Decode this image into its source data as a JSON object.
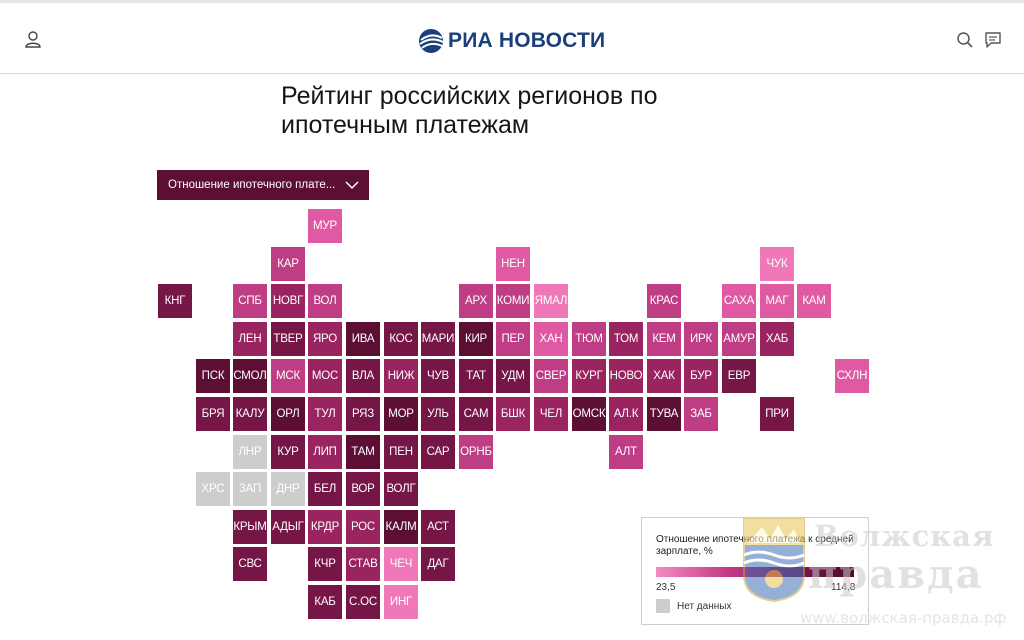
{
  "header": {
    "brand": "РИА НОВОСТИ",
    "icons": {
      "user": "user-icon",
      "search": "search-icon",
      "comments": "comment-icon"
    }
  },
  "title": "Рейтинг российских регионов по ипотечным платежам",
  "dropdown": {
    "selected": "Отношение ипотечного плате..."
  },
  "palette": {
    "c1": "#f078b8",
    "c2": "#df5aa3",
    "c3": "#bf3d84",
    "c4": "#9a245f",
    "c5": "#761647",
    "c6": "#5c0f33",
    "nodata": "#cdcdcd"
  },
  "regions": [
    {
      "code": "МУР",
      "c": "c2"
    },
    {
      "code": "КАР",
      "c": "c3"
    },
    {
      "code": "НЕН",
      "c": "c2"
    },
    {
      "code": "ЧУК",
      "c": "c1"
    },
    {
      "code": "КНГ",
      "c": "c5"
    },
    {
      "code": "СПБ",
      "c": "c3"
    },
    {
      "code": "НОВГ",
      "c": "c4"
    },
    {
      "code": "ВОЛ",
      "c": "c3"
    },
    {
      "code": "АРХ",
      "c": "c3"
    },
    {
      "code": "КОМИ",
      "c": "c3"
    },
    {
      "code": "ЯМАЛ",
      "c": "c1"
    },
    {
      "code": "КРАС",
      "c": "c3"
    },
    {
      "code": "САХА",
      "c": "c2"
    },
    {
      "code": "МАГ",
      "c": "c2"
    },
    {
      "code": "КАМ",
      "c": "c2"
    },
    {
      "code": "ЛЕН",
      "c": "c4"
    },
    {
      "code": "ТВЕР",
      "c": "c5"
    },
    {
      "code": "ЯРО",
      "c": "c4"
    },
    {
      "code": "ИВА",
      "c": "c6"
    },
    {
      "code": "КОС",
      "c": "c5"
    },
    {
      "code": "МАРИ",
      "c": "c5"
    },
    {
      "code": "КИР",
      "c": "c6"
    },
    {
      "code": "ПЕР",
      "c": "c3"
    },
    {
      "code": "ХАН",
      "c": "c2"
    },
    {
      "code": "ТЮМ",
      "c": "c3"
    },
    {
      "code": "ТОМ",
      "c": "c4"
    },
    {
      "code": "КЕМ",
      "c": "c3"
    },
    {
      "code": "ИРК",
      "c": "c3"
    },
    {
      "code": "АМУР",
      "c": "c3"
    },
    {
      "code": "ХАБ",
      "c": "c4"
    },
    {
      "code": "ПСК",
      "c": "c6"
    },
    {
      "code": "СМОЛ",
      "c": "c6"
    },
    {
      "code": "МСК",
      "c": "c3"
    },
    {
      "code": "МОС",
      "c": "c4"
    },
    {
      "code": "ВЛА",
      "c": "c5"
    },
    {
      "code": "НИЖ",
      "c": "c4"
    },
    {
      "code": "ЧУВ",
      "c": "c5"
    },
    {
      "code": "ТАТ",
      "c": "c5"
    },
    {
      "code": "УДМ",
      "c": "c5"
    },
    {
      "code": "СВЕР",
      "c": "c3"
    },
    {
      "code": "КУРГ",
      "c": "c4"
    },
    {
      "code": "НОВО",
      "c": "c4"
    },
    {
      "code": "ХАК",
      "c": "c4"
    },
    {
      "code": "БУР",
      "c": "c4"
    },
    {
      "code": "ЕВР",
      "c": "c5"
    },
    {
      "code": "СХЛН",
      "c": "c2"
    },
    {
      "code": "БРЯ",
      "c": "c5"
    },
    {
      "code": "КАЛУ",
      "c": "c5"
    },
    {
      "code": "ОРЛ",
      "c": "c6"
    },
    {
      "code": "ТУЛ",
      "c": "c4"
    },
    {
      "code": "РЯЗ",
      "c": "c5"
    },
    {
      "code": "МОР",
      "c": "c6"
    },
    {
      "code": "УЛЬ",
      "c": "c5"
    },
    {
      "code": "САМ",
      "c": "c5"
    },
    {
      "code": "БШК",
      "c": "c4"
    },
    {
      "code": "ЧЕЛ",
      "c": "c4"
    },
    {
      "code": "ОМСК",
      "c": "c6"
    },
    {
      "code": "АЛ.К",
      "c": "c4"
    },
    {
      "code": "ТУВА",
      "c": "c6"
    },
    {
      "code": "ЗАБ",
      "c": "c3"
    },
    {
      "code": "ПРИ",
      "c": "c5"
    },
    {
      "code": "ЛНР",
      "c": "nodata"
    },
    {
      "code": "КУР",
      "c": "c5"
    },
    {
      "code": "ЛИП",
      "c": "c4"
    },
    {
      "code": "ТАМ",
      "c": "c6"
    },
    {
      "code": "ПЕН",
      "c": "c5"
    },
    {
      "code": "САР",
      "c": "c5"
    },
    {
      "code": "ОРНБ",
      "c": "c3"
    },
    {
      "code": "АЛТ",
      "c": "c3"
    },
    {
      "code": "ХРС",
      "c": "nodata"
    },
    {
      "code": "ЗАП",
      "c": "nodata"
    },
    {
      "code": "ДНР",
      "c": "nodata"
    },
    {
      "code": "БЕЛ",
      "c": "c5"
    },
    {
      "code": "ВОР",
      "c": "c5"
    },
    {
      "code": "ВОЛГ",
      "c": "c5"
    },
    {
      "code": "КРЫМ",
      "c": "c5"
    },
    {
      "code": "АДЫГ",
      "c": "c5"
    },
    {
      "code": "КРДР",
      "c": "c4"
    },
    {
      "code": "РОС",
      "c": "c4"
    },
    {
      "code": "КАЛМ",
      "c": "c6"
    },
    {
      "code": "АСТ",
      "c": "c5"
    },
    {
      "code": "СВС",
      "c": "c5"
    },
    {
      "code": "КЧР",
      "c": "c5"
    },
    {
      "code": "СТАВ",
      "c": "c4"
    },
    {
      "code": "ЧЕЧ",
      "c": "c1"
    },
    {
      "code": "ДАГ",
      "c": "c5"
    },
    {
      "code": "КАБ",
      "c": "c5"
    },
    {
      "code": "С.ОС",
      "c": "c5"
    },
    {
      "code": "ИНГ",
      "c": "c1"
    }
  ],
  "legend": {
    "title": "Отношение ипотечного платежа к средней зарплате, %",
    "min": "23,5",
    "max": "114,8",
    "nodata_label": "Нет данных"
  },
  "watermark": {
    "name1": "Волжская",
    "name2": "правда",
    "url": "www.волжская-правда.рф",
    "crest": "city-crest-icon"
  }
}
